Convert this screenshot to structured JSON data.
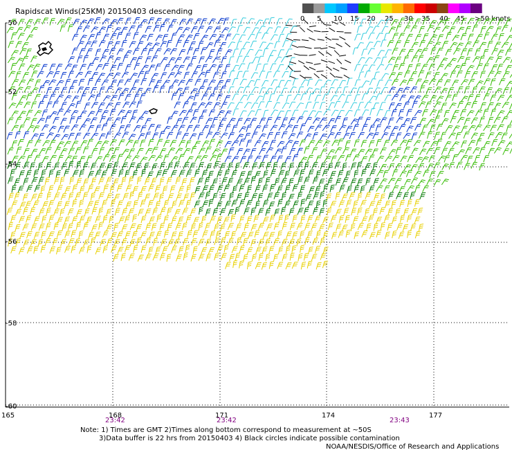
{
  "title": "Rapidscat Winds(25KM) 20150403 descending",
  "legend": {
    "labels": [
      "0",
      "5",
      "10",
      "15",
      "20",
      "25",
      "30",
      "35",
      "40",
      "45",
      ">50 knots"
    ],
    "colors": [
      "#505050",
      "#9a9a9a",
      "#00c8ff",
      "#00a0ff",
      "#1f3cff",
      "#00aa00",
      "#66ff33",
      "#e8e800",
      "#ffb400",
      "#ff6a00",
      "#ff0000",
      "#cc0000",
      "#8b4513",
      "#ff00ff",
      "#b000ff",
      "#6a0080"
    ]
  },
  "y_labels": [
    "-50",
    "-52",
    "-54",
    "-56",
    "-58",
    "-60"
  ],
  "x_labels": [
    "165",
    "168",
    "171",
    "174",
    "177"
  ],
  "times": [
    "23:42",
    "23:42",
    "23:43"
  ],
  "notes": {
    "line1": "Note: 1) Times are GMT 2)Times along bottom correspond to measurement at ~50S",
    "line2": "3)Data buffer is 22 hrs from 20150403 4) Black circles indicate possible contamination",
    "line3": "NOAA/NESDIS/Office of Research and Applications"
  },
  "colors": {
    "slow_black": "#000000",
    "cyan": "#33ccdd",
    "blue": "#0033cc",
    "green": "#33bb00",
    "dark_green": "#007700",
    "yellow": "#e8d000"
  }
}
